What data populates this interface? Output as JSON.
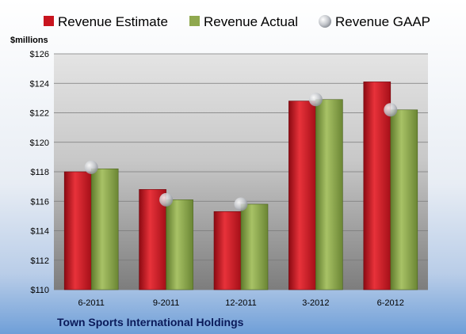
{
  "chart_data": {
    "type": "bar",
    "categories": [
      "6-2011",
      "9-2011",
      "12-2011",
      "3-2012",
      "6-2012"
    ],
    "series": [
      {
        "name": "Revenue Estimate",
        "values": [
          118.0,
          116.8,
          115.3,
          122.8,
          124.1
        ]
      },
      {
        "name": "Revenue Actual",
        "values": [
          118.2,
          116.1,
          115.8,
          122.9,
          122.2
        ]
      }
    ],
    "markers": [
      {
        "name": "Revenue GAAP",
        "values": [
          118.3,
          116.1,
          115.8,
          122.9,
          122.2
        ]
      }
    ],
    "ylabel": "$millions",
    "ylim": [
      110,
      126
    ],
    "yticks": [
      110,
      112,
      114,
      116,
      118,
      120,
      122,
      124,
      126
    ],
    "ytick_labels": [
      "$110",
      "$112",
      "$114",
      "$116",
      "$118",
      "$120",
      "$122",
      "$124",
      "$126"
    ],
    "company": "Town Sports International Holdings",
    "grid": true,
    "legend": "top",
    "colors": {
      "estimate": "#c8141e",
      "actual": "#8fa84e",
      "gaap": "#c0c4cc",
      "company_text": "#0a1a5a"
    }
  }
}
